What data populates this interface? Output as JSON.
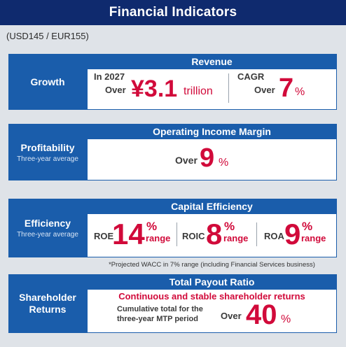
{
  "header": {
    "title": "Financial Indicators"
  },
  "currency_note": "(USD145 / EUR155)",
  "growth": {
    "label": "Growth",
    "section_title": "Revenue",
    "year_label": "In 2027",
    "over_label": "Over",
    "value": "¥3.1",
    "unit": "trillion",
    "cagr_label": "CAGR",
    "cagr_over": "Over",
    "cagr_value": "7",
    "cagr_unit": "%"
  },
  "profitability": {
    "label": "Profitability",
    "sublabel": "Three-year average",
    "section_title": "Operating Income Margin",
    "over_label": "Over",
    "value": "9",
    "unit": "%"
  },
  "efficiency": {
    "label": "Efficiency",
    "sublabel": "Three-year average",
    "section_title": "Capital Efficiency",
    "metrics": [
      {
        "name": "ROE",
        "value": "14",
        "unit": "%",
        "range": "range"
      },
      {
        "name": "ROIC",
        "value": "8",
        "unit": "%",
        "range": "range"
      },
      {
        "name": "ROA",
        "value": "9",
        "unit": "%",
        "range": "range"
      }
    ],
    "footnote": "*Projected WACC in 7% range (including Financial Services business)"
  },
  "shareholder": {
    "label_line1": "Shareholder",
    "label_line2": "Returns",
    "section_title": "Total Payout Ratio",
    "headline": "Continuous and stable shareholder returns",
    "desc_line1": "Cumulative total for the",
    "desc_line2": "three-year MTP period",
    "over_label": "Over",
    "value": "40",
    "unit": "%"
  },
  "colors": {
    "navy": "#0f2a6e",
    "blue": "#1a5dab",
    "red": "#d10a3a",
    "background": "#dfe3e8"
  }
}
